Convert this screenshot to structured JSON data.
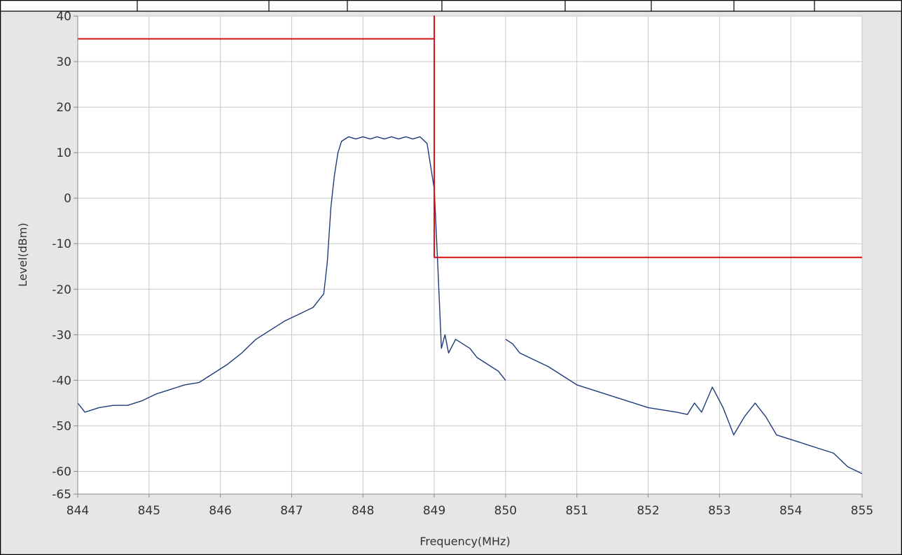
{
  "chart_data": {
    "type": "line",
    "title": "",
    "xlabel": "Frequency(MHz)",
    "ylabel": "Level(dBm)",
    "xlim": [
      844,
      855
    ],
    "ylim": [
      -65,
      40
    ],
    "x_ticks": [
      844,
      845,
      846,
      847,
      848,
      849,
      850,
      851,
      852,
      853,
      854,
      855
    ],
    "y_ticks": [
      40,
      30,
      20,
      10,
      0,
      -10,
      -20,
      -30,
      -40,
      -50,
      -60,
      -65
    ],
    "grid": true,
    "legend": "none",
    "series": [
      {
        "color": "#1f3a7a",
        "segments": [
          {
            "x": [
              844.0,
              844.1,
              844.2,
              844.3,
              844.5,
              844.7,
              844.9,
              845.1,
              845.3,
              845.5,
              845.7,
              845.9,
              846.1,
              846.3,
              846.5,
              846.7,
              846.9,
              847.1,
              847.3,
              847.45,
              847.5,
              847.55,
              847.6,
              847.65,
              847.7,
              847.8,
              847.9,
              848.0,
              848.1,
              848.2,
              848.3,
              848.4,
              848.5,
              848.6,
              848.7,
              848.8,
              848.9,
              849.0,
              849.05,
              849.1,
              849.15,
              849.2,
              849.3,
              849.4,
              849.5,
              849.6,
              849.7,
              849.8,
              849.9,
              850.0
            ],
            "y": [
              -45,
              -47,
              -46.5,
              -46,
              -45.5,
              -45.5,
              -44.5,
              -43,
              -42,
              -41,
              -40.5,
              -38.5,
              -36.5,
              -34,
              -31,
              -29,
              -27,
              -25.5,
              -24,
              -21,
              -14,
              -2,
              5,
              10,
              12.5,
              13.5,
              13,
              13.5,
              13,
              13.5,
              13,
              13.5,
              13,
              13.5,
              13,
              13.5,
              12,
              2,
              -15,
              -33,
              -30,
              -34,
              -31,
              -32,
              -33,
              -35,
              -36,
              -37,
              -38,
              -40
            ]
          },
          {
            "x": [
              850.0,
              850.1,
              850.2,
              850.4,
              850.6,
              850.8,
              851.0,
              851.2,
              851.4,
              851.6,
              851.8,
              852.0,
              852.2,
              852.4,
              852.55,
              852.65,
              852.75,
              852.9,
              853.05,
              853.2,
              853.35,
              853.5,
              853.65,
              853.8,
              854.0,
              854.2,
              854.4,
              854.6,
              854.8,
              855.0
            ],
            "y": [
              -31,
              -32,
              -34,
              -35.5,
              -37,
              -39,
              -41,
              -42,
              -43,
              -44,
              -45,
              -46,
              -46.5,
              -47,
              -47.5,
              -45,
              -47,
              -41.5,
              -46,
              -52,
              -48,
              -45,
              -48,
              -52,
              -53,
              -54,
              -55,
              -56,
              -59,
              -60.5
            ]
          }
        ]
      },
      {
        "color": "#d01010",
        "segments": [
          {
            "x": [
              844,
              849,
              849,
              849,
              855
            ],
            "y": [
              35,
              35,
              40,
              -13,
              -13
            ]
          }
        ]
      }
    ]
  }
}
